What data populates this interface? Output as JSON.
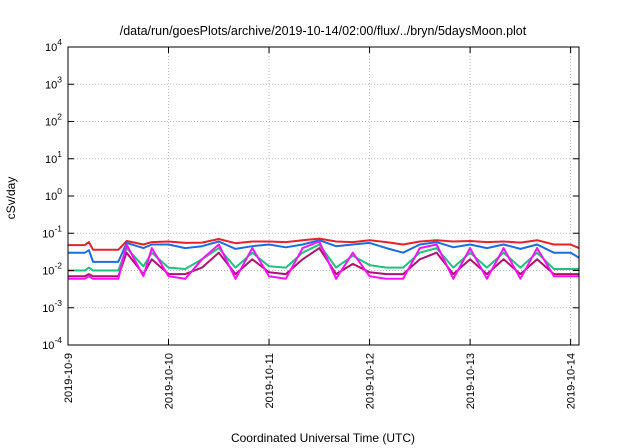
{
  "chart_data": {
    "type": "line",
    "title": "/data/run/goesPlots/archive/2019-10-14/02:00/flux/../bryn/5daysMoon.plot",
    "xlabel": "Coordinated Universal Time (UTC)",
    "ylabel": "cSv/day",
    "yscale": "log",
    "ylim": [
      0.0001,
      10000
    ],
    "xlim": [
      "2019-10-09",
      "2019-10-14T02:00"
    ],
    "grid": true,
    "x_ticks": [
      "2019-10-9",
      "2019-10-10",
      "2019-10-11",
      "2019-10-12",
      "2019-10-13",
      "2019-10-14"
    ],
    "y_ticks": [
      {
        "value": 0.0001,
        "base": "10",
        "exp": "-4"
      },
      {
        "value": 0.001,
        "base": "10",
        "exp": "-3"
      },
      {
        "value": 0.01,
        "base": "10",
        "exp": "-2"
      },
      {
        "value": 0.1,
        "base": "10",
        "exp": "-1"
      },
      {
        "value": 1,
        "base": "10",
        "exp": "0"
      },
      {
        "value": 10,
        "base": "10",
        "exp": "1"
      },
      {
        "value": 100,
        "base": "10",
        "exp": "2"
      },
      {
        "value": 1000,
        "base": "10",
        "exp": "3"
      },
      {
        "value": 10000,
        "base": "10",
        "exp": "4"
      }
    ],
    "series": [
      {
        "color": "#e8202a",
        "x": [
          "2019-10-09T00:00",
          "2019-10-09T04:00",
          "2019-10-09T05:00",
          "2019-10-09T06:00",
          "2019-10-09T12:00",
          "2019-10-09T14:00",
          "2019-10-09T18:00",
          "2019-10-09T20:00",
          "2019-10-10T00:00",
          "2019-10-10T04:00",
          "2019-10-10T08:00",
          "2019-10-10T12:00",
          "2019-10-10T16:00",
          "2019-10-10T20:00",
          "2019-10-11T00:00",
          "2019-10-11T04:00",
          "2019-10-11T08:00",
          "2019-10-11T12:00",
          "2019-10-11T16:00",
          "2019-10-11T20:00",
          "2019-10-12T00:00",
          "2019-10-12T04:00",
          "2019-10-12T08:00",
          "2019-10-12T12:00",
          "2019-10-12T16:00",
          "2019-10-12T20:00",
          "2019-10-13T00:00",
          "2019-10-13T04:00",
          "2019-10-13T08:00",
          "2019-10-13T12:00",
          "2019-10-13T16:00",
          "2019-10-13T20:00",
          "2019-10-14T00:00",
          "2019-10-14T02:00"
        ],
        "y": [
          0.048,
          0.048,
          0.058,
          0.036,
          0.036,
          0.062,
          0.05,
          0.058,
          0.06,
          0.055,
          0.056,
          0.07,
          0.054,
          0.06,
          0.06,
          0.058,
          0.065,
          0.072,
          0.06,
          0.058,
          0.065,
          0.058,
          0.05,
          0.06,
          0.065,
          0.06,
          0.062,
          0.058,
          0.06,
          0.056,
          0.065,
          0.05,
          0.05,
          0.04
        ]
      },
      {
        "color": "#1a6de0",
        "x": [
          "2019-10-09T00:00",
          "2019-10-09T04:00",
          "2019-10-09T05:00",
          "2019-10-09T06:00",
          "2019-10-09T12:00",
          "2019-10-09T14:00",
          "2019-10-09T18:00",
          "2019-10-09T20:00",
          "2019-10-10T00:00",
          "2019-10-10T04:00",
          "2019-10-10T08:00",
          "2019-10-10T12:00",
          "2019-10-10T16:00",
          "2019-10-10T20:00",
          "2019-10-11T00:00",
          "2019-10-11T04:00",
          "2019-10-11T08:00",
          "2019-10-11T12:00",
          "2019-10-11T16:00",
          "2019-10-11T20:00",
          "2019-10-12T00:00",
          "2019-10-12T04:00",
          "2019-10-12T08:00",
          "2019-10-12T12:00",
          "2019-10-12T16:00",
          "2019-10-12T20:00",
          "2019-10-13T00:00",
          "2019-10-13T04:00",
          "2019-10-13T08:00",
          "2019-10-13T12:00",
          "2019-10-13T16:00",
          "2019-10-13T20:00",
          "2019-10-14T00:00",
          "2019-10-14T02:00"
        ],
        "y": [
          0.03,
          0.03,
          0.035,
          0.017,
          0.017,
          0.055,
          0.04,
          0.05,
          0.05,
          0.04,
          0.045,
          0.06,
          0.038,
          0.045,
          0.05,
          0.042,
          0.05,
          0.065,
          0.045,
          0.05,
          0.055,
          0.04,
          0.03,
          0.05,
          0.058,
          0.042,
          0.05,
          0.04,
          0.05,
          0.038,
          0.05,
          0.03,
          0.03,
          0.022
        ]
      },
      {
        "color": "#20c080",
        "x": [
          "2019-10-09T00:00",
          "2019-10-09T04:00",
          "2019-10-09T05:00",
          "2019-10-09T06:00",
          "2019-10-09T12:00",
          "2019-10-09T14:00",
          "2019-10-09T18:00",
          "2019-10-09T20:00",
          "2019-10-10T00:00",
          "2019-10-10T04:00",
          "2019-10-10T08:00",
          "2019-10-10T12:00",
          "2019-10-10T16:00",
          "2019-10-10T20:00",
          "2019-10-11T00:00",
          "2019-10-11T04:00",
          "2019-10-11T08:00",
          "2019-10-11T12:00",
          "2019-10-11T16:00",
          "2019-10-11T20:00",
          "2019-10-12T00:00",
          "2019-10-12T04:00",
          "2019-10-12T08:00",
          "2019-10-12T12:00",
          "2019-10-12T16:00",
          "2019-10-12T20:00",
          "2019-10-13T00:00",
          "2019-10-13T04:00",
          "2019-10-13T08:00",
          "2019-10-13T12:00",
          "2019-10-13T16:00",
          "2019-10-13T20:00",
          "2019-10-14T00:00",
          "2019-10-14T02:00"
        ],
        "y": [
          0.01,
          0.01,
          0.012,
          0.01,
          0.01,
          0.04,
          0.013,
          0.03,
          0.012,
          0.011,
          0.02,
          0.04,
          0.012,
          0.03,
          0.013,
          0.012,
          0.03,
          0.05,
          0.012,
          0.025,
          0.014,
          0.012,
          0.012,
          0.03,
          0.04,
          0.012,
          0.03,
          0.012,
          0.03,
          0.012,
          0.03,
          0.011,
          0.011,
          0.011
        ]
      },
      {
        "color": "#b01070",
        "x": [
          "2019-10-09T00:00",
          "2019-10-09T04:00",
          "2019-10-09T05:00",
          "2019-10-09T06:00",
          "2019-10-09T12:00",
          "2019-10-09T14:00",
          "2019-10-09T18:00",
          "2019-10-09T20:00",
          "2019-10-10T00:00",
          "2019-10-10T04:00",
          "2019-10-10T08:00",
          "2019-10-10T12:00",
          "2019-10-10T16:00",
          "2019-10-10T20:00",
          "2019-10-11T00:00",
          "2019-10-11T04:00",
          "2019-10-11T08:00",
          "2019-10-11T12:00",
          "2019-10-11T16:00",
          "2019-10-11T20:00",
          "2019-10-12T00:00",
          "2019-10-12T04:00",
          "2019-10-12T08:00",
          "2019-10-12T12:00",
          "2019-10-12T16:00",
          "2019-10-12T20:00",
          "2019-10-13T00:00",
          "2019-10-13T04:00",
          "2019-10-13T08:00",
          "2019-10-13T12:00",
          "2019-10-13T16:00",
          "2019-10-13T20:00",
          "2019-10-14T00:00",
          "2019-10-14T02:00"
        ],
        "y": [
          0.007,
          0.007,
          0.008,
          0.007,
          0.007,
          0.03,
          0.008,
          0.02,
          0.008,
          0.008,
          0.012,
          0.03,
          0.008,
          0.02,
          0.009,
          0.008,
          0.02,
          0.04,
          0.008,
          0.015,
          0.009,
          0.008,
          0.008,
          0.02,
          0.03,
          0.008,
          0.02,
          0.008,
          0.02,
          0.008,
          0.02,
          0.008,
          0.008,
          0.008
        ]
      },
      {
        "color": "#ff10ff",
        "x": [
          "2019-10-09T00:00",
          "2019-10-09T04:00",
          "2019-10-09T05:00",
          "2019-10-09T06:00",
          "2019-10-09T12:00",
          "2019-10-09T14:00",
          "2019-10-09T18:00",
          "2019-10-09T20:00",
          "2019-10-10T00:00",
          "2019-10-10T04:00",
          "2019-10-10T08:00",
          "2019-10-10T12:00",
          "2019-10-10T16:00",
          "2019-10-10T20:00",
          "2019-10-11T00:00",
          "2019-10-11T04:00",
          "2019-10-11T08:00",
          "2019-10-11T12:00",
          "2019-10-11T16:00",
          "2019-10-11T20:00",
          "2019-10-12T00:00",
          "2019-10-12T04:00",
          "2019-10-12T08:00",
          "2019-10-12T12:00",
          "2019-10-12T16:00",
          "2019-10-12T20:00",
          "2019-10-13T00:00",
          "2019-10-13T04:00",
          "2019-10-13T08:00",
          "2019-10-13T12:00",
          "2019-10-13T16:00",
          "2019-10-13T20:00",
          "2019-10-14T00:00",
          "2019-10-14T02:00"
        ],
        "y": [
          0.006,
          0.006,
          0.007,
          0.006,
          0.006,
          0.05,
          0.007,
          0.04,
          0.007,
          0.006,
          0.02,
          0.05,
          0.006,
          0.04,
          0.007,
          0.006,
          0.04,
          0.06,
          0.006,
          0.03,
          0.007,
          0.006,
          0.006,
          0.04,
          0.05,
          0.006,
          0.04,
          0.006,
          0.04,
          0.006,
          0.04,
          0.007,
          0.007,
          0.007
        ]
      }
    ]
  }
}
